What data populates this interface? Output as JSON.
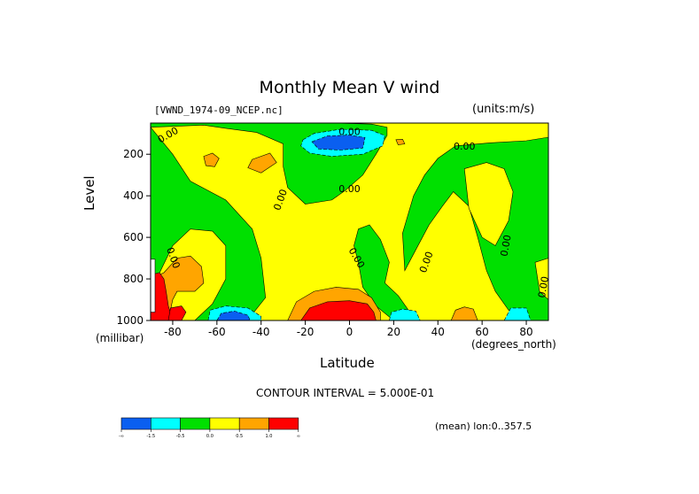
{
  "chart_data": {
    "type": "heatmap",
    "title": "Monthly Mean V wind",
    "dataset_label": "[VWND_1974-09_NCEP.nc]",
    "units_label": "(units:m/s)",
    "xlabel": "Latitude",
    "x_unit": "(degrees_north)",
    "ylabel": "Level",
    "y_unit": "(millibar)",
    "xlim": [
      -90,
      90
    ],
    "ylim": [
      1000,
      50
    ],
    "x_ticks": [
      -80,
      -60,
      -40,
      -20,
      0,
      20,
      40,
      60,
      80
    ],
    "y_ticks": [
      200,
      400,
      600,
      800,
      1000
    ],
    "contour_interval_text": "CONTOUR INTERVAL = 5.000E-01",
    "mean_info": "(mean) lon:0..357.5",
    "colorbar": {
      "colors": [
        "#0a5ff0",
        "#00ffff",
        "#00e000",
        "#ffff00",
        "#ffa500",
        "#ff0000"
      ],
      "labels": [
        "-∞",
        "-1.5",
        "-0.5",
        "0.0",
        "0.5",
        "1.0",
        "∞"
      ]
    },
    "contour_labels": [
      {
        "text": "0.00",
        "lat": -82,
        "lev": 110,
        "rot": -30
      },
      {
        "text": "0.00",
        "lat": 0,
        "lev": 95,
        "rot": 0
      },
      {
        "text": "0.00",
        "lat": 52,
        "lev": 165,
        "rot": 0
      },
      {
        "text": "0.00",
        "lat": -31,
        "lev": 420,
        "rot": -70
      },
      {
        "text": "0.00",
        "lat": 0,
        "lev": 370,
        "rot": 0
      },
      {
        "text": "0.00",
        "lat": 71,
        "lev": 640,
        "rot": -80
      },
      {
        "text": "0.00",
        "lat": 3,
        "lev": 700,
        "rot": 60
      },
      {
        "text": "0.00",
        "lat": 35,
        "lev": 720,
        "rot": -70
      },
      {
        "text": "0.00",
        "lat": -80,
        "lev": 700,
        "rot": 70
      },
      {
        "text": "0.00",
        "lat": 88,
        "lev": 840,
        "rot": -80
      }
    ],
    "regions": [
      {
        "color": "#ffff00",
        "pts": [
          [
            -90,
            50
          ],
          [
            90,
            50
          ],
          [
            90,
            1000
          ],
          [
            -90,
            1000
          ]
        ]
      },
      {
        "color": "#00e000",
        "pts": [
          [
            -90,
            70
          ],
          [
            -66,
            60
          ],
          [
            -56,
            75
          ],
          [
            -42,
            95
          ],
          [
            -30,
            150
          ],
          [
            -30,
            260
          ],
          [
            -28,
            360
          ],
          [
            -20,
            440
          ],
          [
            -8,
            420
          ],
          [
            -2,
            375
          ],
          [
            6,
            300
          ],
          [
            12,
            200
          ],
          [
            17,
            110
          ],
          [
            17,
            70
          ],
          [
            10,
            55
          ],
          [
            -6,
            50
          ],
          [
            -40,
            50
          ],
          [
            -90,
            50
          ]
        ]
      },
      {
        "color": "#00e000",
        "pts": [
          [
            -90,
            70
          ],
          [
            -80,
            200
          ],
          [
            -72,
            330
          ],
          [
            -56,
            420
          ],
          [
            -44,
            560
          ],
          [
            -40,
            700
          ],
          [
            -38,
            890
          ],
          [
            -44,
            970
          ],
          [
            -50,
            1000
          ],
          [
            -90,
            1000
          ],
          [
            -90,
            70
          ]
        ]
      },
      {
        "color": "#00e000",
        "pts": [
          [
            4,
            560
          ],
          [
            9,
            540
          ],
          [
            14,
            610
          ],
          [
            18,
            720
          ],
          [
            16,
            820
          ],
          [
            22,
            880
          ],
          [
            30,
            1000
          ],
          [
            20,
            1000
          ],
          [
            12,
            930
          ],
          [
            6,
            840
          ],
          [
            4,
            720
          ],
          [
            2,
            640
          ]
        ]
      },
      {
        "color": "#00e000",
        "pts": [
          [
            24,
            580
          ],
          [
            29,
            400
          ],
          [
            34,
            300
          ],
          [
            40,
            220
          ],
          [
            48,
            160
          ],
          [
            64,
            145
          ],
          [
            80,
            135
          ],
          [
            90,
            118
          ],
          [
            90,
            1000
          ],
          [
            80,
            1000
          ],
          [
            72,
            950
          ],
          [
            66,
            860
          ],
          [
            62,
            760
          ],
          [
            58,
            600
          ],
          [
            54,
            450
          ],
          [
            47,
            380
          ],
          [
            42,
            450
          ],
          [
            36,
            540
          ],
          [
            30,
            660
          ],
          [
            25,
            760
          ]
        ]
      },
      {
        "color": "#ffff00",
        "pts": [
          [
            52,
            270
          ],
          [
            62,
            240
          ],
          [
            70,
            270
          ],
          [
            74,
            380
          ],
          [
            72,
            520
          ],
          [
            66,
            640
          ],
          [
            60,
            600
          ],
          [
            54,
            460
          ]
        ]
      },
      {
        "color": "#ffff00",
        "pts": [
          [
            84,
            720
          ],
          [
            90,
            700
          ],
          [
            90,
            900
          ],
          [
            86,
            860
          ]
        ]
      },
      {
        "color": "#ffff00",
        "pts": [
          [
            -90,
            860
          ],
          [
            -80,
            640
          ],
          [
            -72,
            560
          ],
          [
            -62,
            570
          ],
          [
            -56,
            640
          ],
          [
            -56,
            800
          ],
          [
            -62,
            920
          ],
          [
            -70,
            1000
          ],
          [
            -90,
            1000
          ]
        ]
      },
      {
        "color": "#ffa500",
        "pts": [
          [
            -44,
            225
          ],
          [
            -36,
            195
          ],
          [
            -33,
            240
          ],
          [
            -40,
            290
          ],
          [
            -46,
            265
          ]
        ]
      },
      {
        "color": "#ffa500",
        "pts": [
          [
            -66,
            210
          ],
          [
            -62,
            195
          ],
          [
            -59,
            220
          ],
          [
            -61,
            260
          ],
          [
            -65,
            255
          ]
        ]
      },
      {
        "color": "#ffa500",
        "pts": [
          [
            21,
            130
          ],
          [
            24,
            128
          ],
          [
            25,
            150
          ],
          [
            22,
            155
          ]
        ]
      },
      {
        "color": "#ffa500",
        "pts": [
          [
            -90,
            800
          ],
          [
            -84,
            770
          ],
          [
            -78,
            700
          ],
          [
            -72,
            690
          ],
          [
            -67,
            740
          ],
          [
            -66,
            820
          ],
          [
            -70,
            860
          ],
          [
            -78,
            860
          ],
          [
            -80,
            900
          ],
          [
            -82,
            1000
          ],
          [
            -90,
            1000
          ]
        ]
      },
      {
        "color": "#ffa500",
        "pts": [
          [
            -28,
            1000
          ],
          [
            -24,
            910
          ],
          [
            -16,
            860
          ],
          [
            -6,
            840
          ],
          [
            4,
            850
          ],
          [
            10,
            890
          ],
          [
            14,
            960
          ],
          [
            14,
            1000
          ]
        ]
      },
      {
        "color": "#ffa500",
        "pts": [
          [
            46,
            1000
          ],
          [
            48,
            950
          ],
          [
            52,
            935
          ],
          [
            56,
            945
          ],
          [
            58,
            1000
          ]
        ]
      },
      {
        "color": "#ff0000",
        "pts": [
          [
            -90,
            780
          ],
          [
            -86,
            770
          ],
          [
            -84,
            800
          ],
          [
            -83,
            860
          ],
          [
            -82,
            930
          ],
          [
            -80,
            1000
          ],
          [
            -90,
            1000
          ]
        ]
      },
      {
        "color": "#ff0000",
        "pts": [
          [
            -81,
            940
          ],
          [
            -76,
            930
          ],
          [
            -74,
            960
          ],
          [
            -76,
            1000
          ],
          [
            -82,
            1000
          ]
        ]
      },
      {
        "color": "#ff0000",
        "pts": [
          [
            -22,
            1000
          ],
          [
            -18,
            940
          ],
          [
            -10,
            910
          ],
          [
            0,
            905
          ],
          [
            8,
            920
          ],
          [
            11,
            960
          ],
          [
            12,
            1000
          ]
        ]
      },
      {
        "color": "#ffffff",
        "pts": [
          [
            -90,
            705
          ],
          [
            -88,
            705
          ],
          [
            -88,
            960
          ],
          [
            -90,
            960
          ]
        ]
      },
      {
        "color": "#00ffff",
        "pts": [
          [
            -21,
            130
          ],
          [
            -16,
            100
          ],
          [
            -4,
            80
          ],
          [
            10,
            85
          ],
          [
            16,
            110
          ],
          [
            15,
            160
          ],
          [
            6,
            200
          ],
          [
            -8,
            210
          ],
          [
            -18,
            195
          ],
          [
            -22,
            160
          ]
        ]
      },
      {
        "color": "#0a5ff0",
        "pts": [
          [
            -17,
            140
          ],
          [
            -10,
            112
          ],
          [
            0,
            108
          ],
          [
            7,
            120
          ],
          [
            6,
            170
          ],
          [
            -4,
            180
          ],
          [
            -14,
            175
          ]
        ]
      },
      {
        "color": "#00ffff",
        "pts": [
          [
            -64,
            1000
          ],
          [
            -63,
            950
          ],
          [
            -56,
            930
          ],
          [
            -46,
            940
          ],
          [
            -40,
            980
          ],
          [
            -40,
            1000
          ]
        ]
      },
      {
        "color": "#0a5ff0",
        "pts": [
          [
            -60,
            1000
          ],
          [
            -58,
            965
          ],
          [
            -52,
            955
          ],
          [
            -46,
            975
          ],
          [
            -45,
            1000
          ]
        ]
      },
      {
        "color": "#00ffff",
        "pts": [
          [
            18,
            1000
          ],
          [
            19,
            960
          ],
          [
            24,
            945
          ],
          [
            30,
            955
          ],
          [
            32,
            1000
          ]
        ]
      },
      {
        "color": "#00ffff",
        "pts": [
          [
            70,
            1000
          ],
          [
            73,
            940
          ],
          [
            80,
            940
          ],
          [
            82,
            1000
          ]
        ]
      }
    ]
  }
}
